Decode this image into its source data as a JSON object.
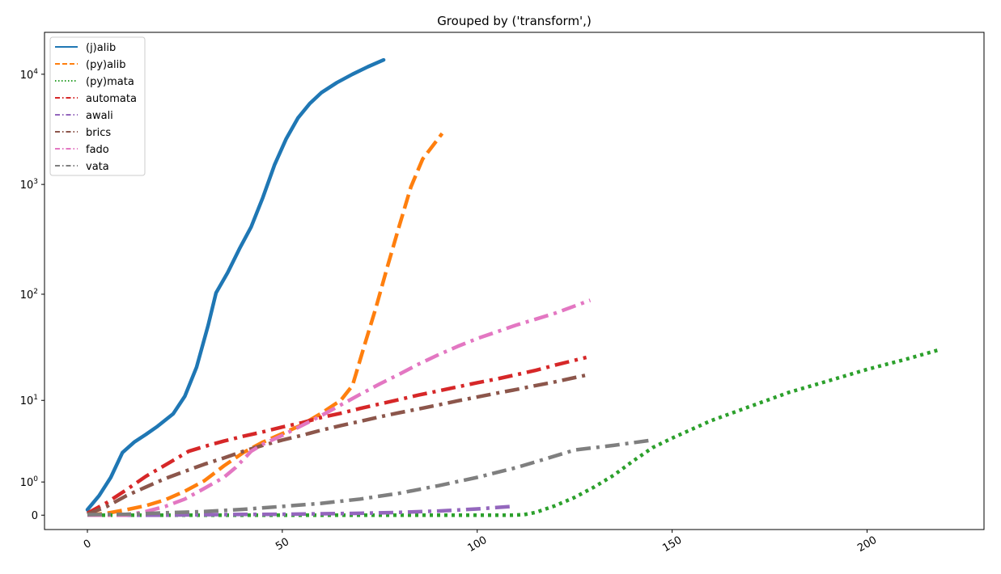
{
  "chart_data": {
    "type": "line",
    "title": "Grouped by ('transform',)",
    "xlabel": "",
    "ylabel": "",
    "xlim": [
      -11,
      230
    ],
    "ylim": [
      -0.35,
      24000
    ],
    "yscale": "symlog",
    "grid": false,
    "legend_position": "top-left",
    "x_ticks": [
      {
        "value": 0,
        "label": "0"
      },
      {
        "value": 50,
        "label": "50"
      },
      {
        "value": 100,
        "label": "100"
      },
      {
        "value": 150,
        "label": "150"
      },
      {
        "value": 200,
        "label": "200"
      }
    ],
    "y_ticks": [
      {
        "value": 0,
        "base": "",
        "exp": "",
        "label": "0"
      },
      {
        "value": 1,
        "base": "10",
        "exp": "0"
      },
      {
        "value": 10,
        "base": "10",
        "exp": "1"
      },
      {
        "value": 100,
        "base": "10",
        "exp": "2"
      },
      {
        "value": 1000,
        "base": "10",
        "exp": "3"
      },
      {
        "value": 10000,
        "base": "10",
        "exp": "4"
      }
    ],
    "series": [
      {
        "name": "(j)alib",
        "color": "#1f77b4",
        "dash": "solid",
        "x": [
          0,
          3,
          6,
          9,
          12,
          15,
          18,
          22,
          25,
          28,
          31,
          33,
          36,
          39,
          42,
          45,
          48,
          51,
          54,
          57,
          60,
          64,
          68,
          72,
          76
        ],
        "y": [
          0.12,
          0.5,
          1.2,
          2.7,
          3.6,
          4.4,
          5.4,
          7.3,
          11,
          21,
          52,
          103,
          158,
          260,
          410,
          760,
          1500,
          2600,
          4000,
          5400,
          6800,
          8400,
          10000,
          11700,
          13500
        ]
      },
      {
        "name": "(py)alib",
        "color": "#ff7f0e",
        "dash": "dashed",
        "x": [
          0,
          5,
          10,
          15,
          20,
          25,
          30,
          35,
          40,
          45,
          50,
          55,
          60,
          65,
          68,
          71,
          74,
          77,
          80,
          83,
          86,
          91
        ],
        "y": [
          0,
          0.04,
          0.12,
          0.22,
          0.38,
          0.65,
          1.05,
          1.8,
          2.7,
          3.6,
          4.5,
          5.6,
          7.4,
          10,
          14,
          33,
          75,
          180,
          420,
          950,
          1700,
          2900
        ]
      },
      {
        "name": "(py)mata",
        "color": "#2ca02c",
        "dash": "dotted",
        "x": [
          0,
          20,
          40,
          60,
          80,
          100,
          109,
          112,
          115,
          120,
          125,
          130,
          135,
          140,
          145,
          150,
          160,
          170,
          180,
          190,
          200,
          210,
          219
        ],
        "y": [
          0,
          0,
          0,
          0,
          0,
          0,
          0,
          0.01,
          0.06,
          0.22,
          0.45,
          0.8,
          1.3,
          2.1,
          3.1,
          4.0,
          6.2,
          8.7,
          12,
          15.5,
          20,
          25,
          31
        ]
      },
      {
        "name": "automata",
        "color": "#d62728",
        "dash": "dashdot",
        "x": [
          0,
          5,
          10,
          15,
          20,
          26,
          30,
          35,
          40,
          45,
          50,
          55,
          60,
          65,
          70,
          75,
          80,
          85,
          90,
          95,
          100,
          105,
          110,
          115,
          120,
          128
        ],
        "y": [
          0.04,
          0.3,
          0.7,
          1.25,
          1.85,
          2.8,
          3.2,
          3.7,
          4.2,
          4.7,
          5.3,
          5.9,
          6.7,
          7.4,
          8.3,
          9.2,
          10.2,
          11.3,
          12.4,
          13.6,
          14.9,
          16.2,
          17.8,
          19.6,
          22,
          26
        ]
      },
      {
        "name": "awali",
        "color": "#9467bd",
        "dash": "dashdot",
        "x": [
          0,
          10,
          20,
          30,
          40,
          50,
          60,
          70,
          80,
          90,
          100,
          109
        ],
        "y": [
          0,
          0,
          0,
          0.01,
          0.015,
          0.02,
          0.03,
          0.04,
          0.06,
          0.09,
          0.14,
          0.2
        ]
      },
      {
        "name": "brics",
        "color": "#8c564b",
        "dash": "dashdot",
        "x": [
          0,
          5,
          10,
          15,
          20,
          25,
          30,
          35,
          40,
          45,
          50,
          55,
          60,
          65,
          70,
          75,
          80,
          85,
          90,
          95,
          100,
          105,
          110,
          115,
          120,
          129
        ],
        "y": [
          0.02,
          0.2,
          0.5,
          0.8,
          1.15,
          1.5,
          1.9,
          2.3,
          2.8,
          3.3,
          3.8,
          4.3,
          4.9,
          5.5,
          6.1,
          6.8,
          7.5,
          8.2,
          9.0,
          9.9,
          10.8,
          11.8,
          12.8,
          14,
          15.2,
          18
        ]
      },
      {
        "name": "fado",
        "color": "#e377c2",
        "dash": "dashdot",
        "x": [
          0,
          10,
          15,
          20,
          25,
          30,
          35,
          38,
          40,
          42,
          45,
          50,
          55,
          60,
          65,
          70,
          75,
          80,
          85,
          90,
          95,
          100,
          105,
          110,
          115,
          120,
          129
        ],
        "y": [
          0,
          0,
          0.08,
          0.2,
          0.4,
          0.75,
          1.2,
          1.7,
          2.2,
          2.8,
          3.4,
          4.3,
          5.5,
          7.0,
          9.0,
          11.5,
          14.5,
          18,
          22.5,
          27.5,
          33,
          39,
          45,
          52,
          59,
          67,
          88
        ]
      },
      {
        "name": "vata",
        "color": "#7f7f7f",
        "dash": "dashdot",
        "x": [
          0,
          10,
          20,
          30,
          40,
          50,
          60,
          70,
          80,
          90,
          100,
          110,
          117,
          125,
          135,
          145
        ],
        "y": [
          0.01,
          0.02,
          0.05,
          0.08,
          0.13,
          0.2,
          0.28,
          0.4,
          0.58,
          0.85,
          1.2,
          1.7,
          2.2,
          2.9,
          3.3,
          3.8
        ]
      }
    ]
  }
}
